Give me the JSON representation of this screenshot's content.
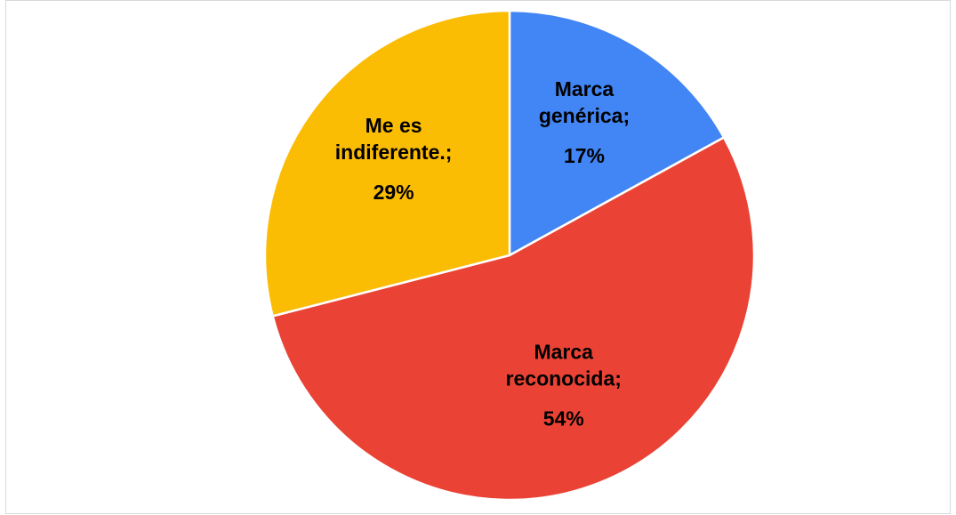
{
  "chart_data": {
    "type": "pie",
    "categories": [
      "Marca genérica;",
      "Marca reconocida;",
      "Me es indiferente.;"
    ],
    "values": [
      17,
      54,
      29
    ],
    "value_labels": [
      "17%",
      "54%",
      "29%"
    ],
    "colors": [
      "#4285f4",
      "#ea4335",
      "#fbbc04"
    ]
  }
}
